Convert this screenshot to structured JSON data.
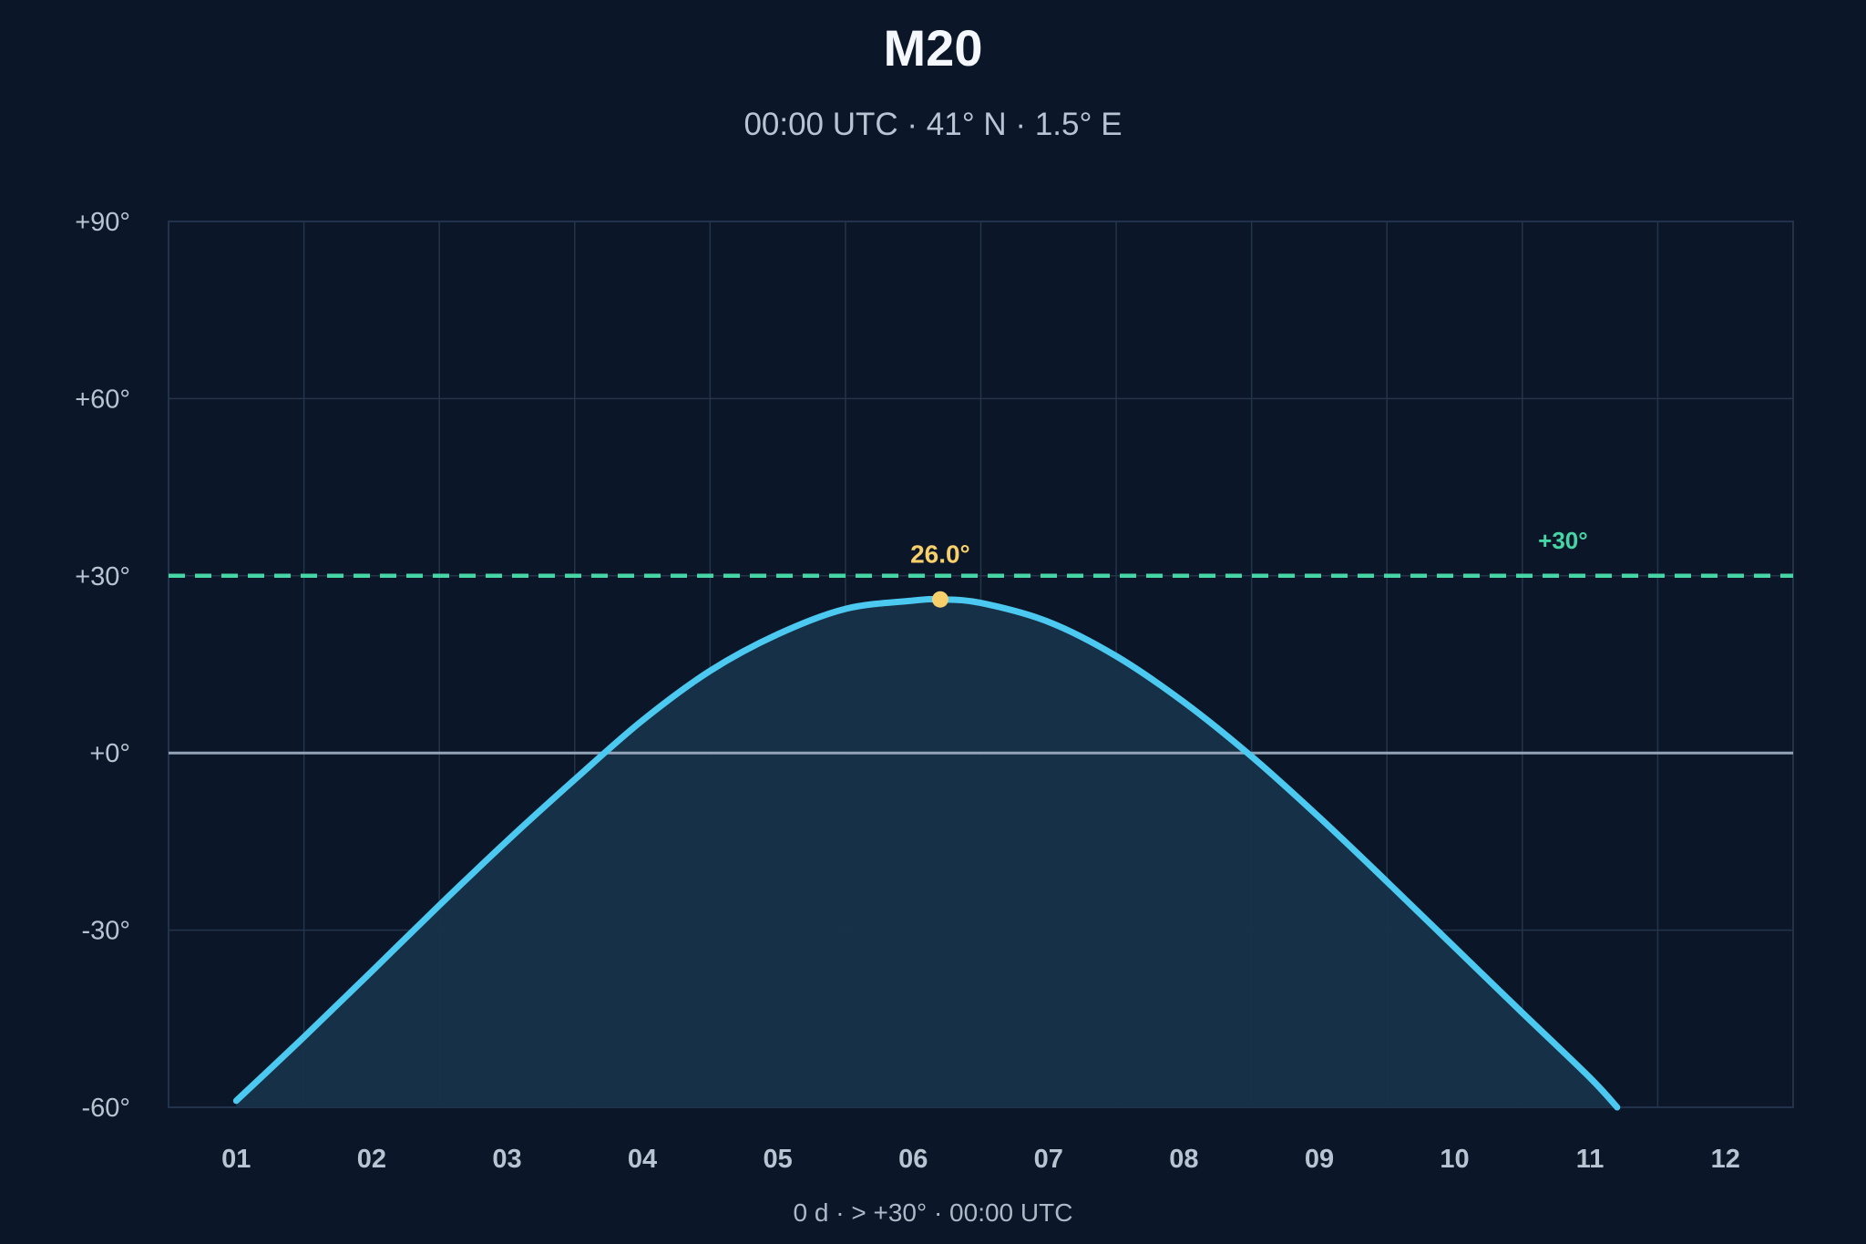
{
  "colors": {
    "background": "#0b1628",
    "curve": "#4cc9f0",
    "fill": "#163149",
    "threshold": "#46d6a6",
    "peak": "#f7cf6b",
    "horizon": "#94a3b8",
    "grid": "#24344a"
  },
  "chart_data": {
    "type": "area",
    "title": "M20",
    "subtitle": "00:00 UTC · 41° N · 1.5° E",
    "footer": "0 d · > +30° · 00:00 UTC",
    "xlabel": "",
    "ylabel": "",
    "x_categories": [
      "01",
      "02",
      "03",
      "04",
      "05",
      "06",
      "07",
      "08",
      "09",
      "10",
      "11",
      "12"
    ],
    "y_ticks": [
      "+90°",
      "+60°",
      "+30°",
      "+0°",
      "-30°",
      "-60°"
    ],
    "y_tick_values": [
      90,
      60,
      30,
      0,
      -30,
      -60
    ],
    "ylim": [
      -60,
      90
    ],
    "xlim": [
      0.5,
      12.5
    ],
    "grid": true,
    "series": [
      {
        "x": [
          1.0,
          1.5,
          2.0,
          2.5,
          3.0,
          3.5,
          4.0,
          4.5,
          5.0,
          5.5,
          6.0,
          6.2,
          6.5,
          7.0,
          7.5,
          8.0,
          8.5,
          9.0,
          9.5,
          10.0,
          10.5,
          11.0,
          11.2
        ],
        "y": [
          -58.9,
          -48.1,
          -37.0,
          -25.8,
          -14.9,
          -4.5,
          5.5,
          13.9,
          20.1,
          24.4,
          25.8,
          26.0,
          25.4,
          22.2,
          16.4,
          8.6,
          -0.6,
          -10.9,
          -21.8,
          -32.9,
          -44.0,
          -55.0,
          -60.0
        ]
      }
    ],
    "peak": {
      "x": 6.2,
      "y": 26.0,
      "label": "26.0°"
    },
    "threshold": {
      "y": 30,
      "label": "+30°"
    },
    "horizon": {
      "y": 0
    }
  }
}
